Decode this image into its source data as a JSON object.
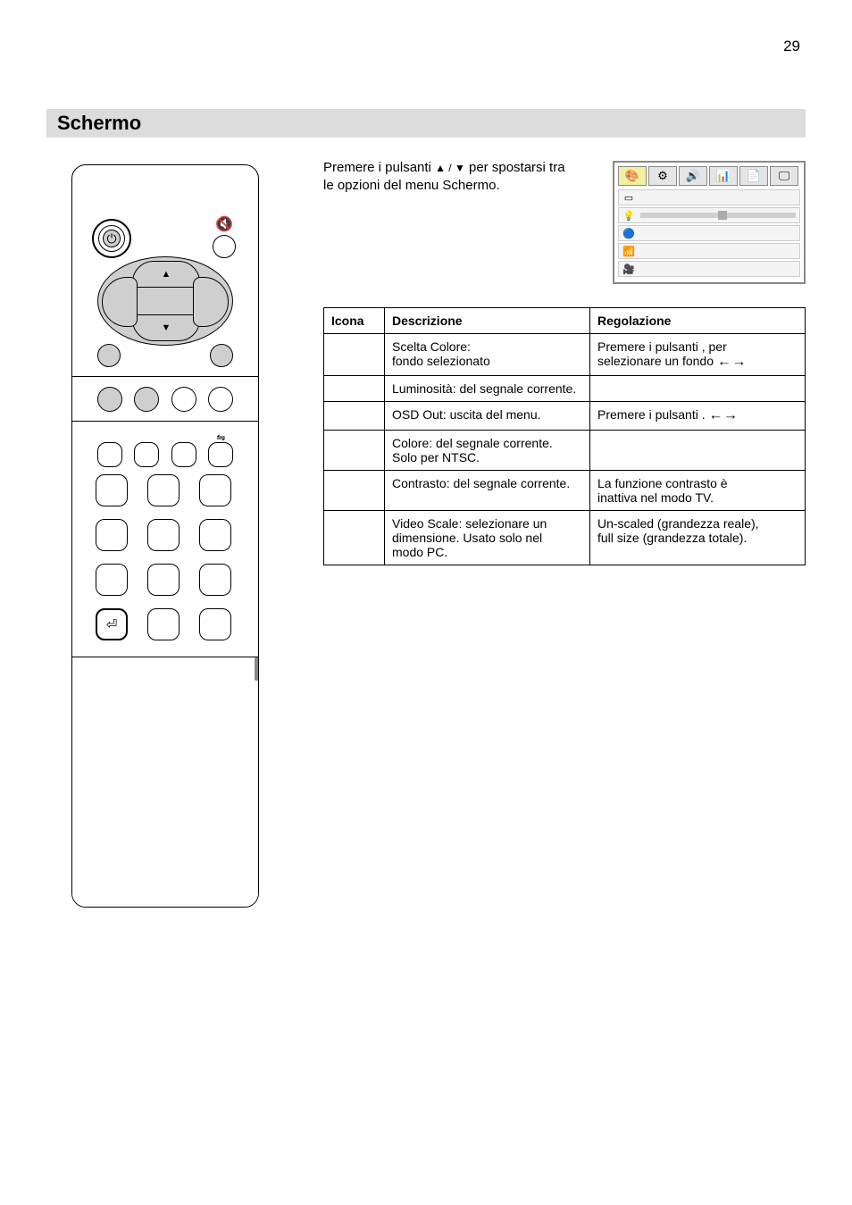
{
  "page_number": "29",
  "section_title": "Schermo",
  "intro_line1_pre": "Premere i pulsanti ",
  "intro_line1_mid": " per spostarsi tra",
  "intro_line1_post": "le opzioni del menu Schermo.",
  "intro_arrows": "▲ / ▼",
  "table": {
    "headers": [
      "Icona",
      "Descrizione",
      "Regolazione"
    ],
    "rows": [
      [
        "",
        "Scelta Colore:\nfondo selezionato",
        "Premere i pulsanti       , per\nselezionare un fondo"
      ],
      [
        "",
        "Luminosità: del segnale corrente.",
        ""
      ],
      [
        "",
        "OSD Out: uscita del menu.",
        "Premere i pulsanti       ."
      ],
      [
        "",
        "Colore: del segnale corrente.\nSolo per NTSC.",
        ""
      ],
      [
        "",
        "Contrasto: del segnale corrente.",
        "La funzione contrasto è\ninattiva nel modo TV."
      ],
      [
        "",
        "Video Scale: selezionare un\ndimensione. Usato solo nel\nmodo PC.",
        "Un-scaled (grandezza reale),\nfull size (grandezza totale)."
      ]
    ]
  },
  "osd": {
    "tab_icons": [
      "🎨",
      "⚙",
      "🔊",
      "📊",
      "📄",
      "🖵"
    ],
    "rows": [
      {
        "icon": "▭",
        "label": ""
      },
      {
        "icon": "💡",
        "label": "",
        "slider": true
      },
      {
        "icon": "🔵",
        "label": ""
      },
      {
        "icon": "📶",
        "label": ""
      },
      {
        "icon": "🎥",
        "label": ""
      }
    ]
  },
  "remote": {
    "power_glyph": "⏻",
    "mute_glyph": "🔇",
    "up_glyph": "▲",
    "down_glyph": "▼",
    "swap_glyph": "⇋",
    "enter_glyph": "⏎"
  },
  "colors": {
    "bar_bg": "#dcdcdc",
    "remote_fill_grey": "#cfcfcf"
  }
}
